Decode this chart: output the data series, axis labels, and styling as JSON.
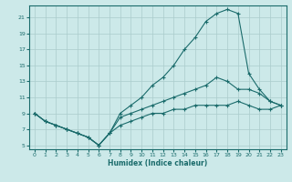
{
  "xlabel": "Humidex (Indice chaleur)",
  "background_color": "#cce9e9",
  "grid_color": "#aacccc",
  "line_color": "#1a6b6b",
  "xlim": [
    -0.5,
    23.5
  ],
  "ylim": [
    4.5,
    22.5
  ],
  "xticks": [
    0,
    1,
    2,
    3,
    4,
    5,
    6,
    7,
    8,
    9,
    10,
    11,
    12,
    13,
    14,
    15,
    16,
    17,
    18,
    19,
    20,
    21,
    22,
    23
  ],
  "yticks": [
    5,
    7,
    9,
    11,
    13,
    15,
    17,
    19,
    21
  ],
  "series": [
    {
      "x": [
        0,
        1,
        2,
        3,
        4,
        5,
        6,
        7,
        8,
        9,
        10,
        11,
        12,
        13,
        14,
        15,
        16,
        17,
        18,
        19,
        20,
        21,
        22,
        23
      ],
      "y": [
        9,
        8,
        7.5,
        7,
        6.5,
        6,
        5,
        6.5,
        9,
        10,
        11,
        12.5,
        13.5,
        15,
        17,
        18.5,
        20.5,
        21.5,
        22,
        21.5,
        14,
        12,
        10.5,
        10
      ]
    },
    {
      "x": [
        0,
        1,
        2,
        3,
        4,
        5,
        6,
        7,
        8,
        9,
        10,
        11,
        12,
        13,
        14,
        15,
        16,
        17,
        18,
        19,
        20,
        21,
        22,
        23
      ],
      "y": [
        9,
        8,
        7.5,
        7,
        6.5,
        6,
        5,
        6.5,
        8.5,
        9,
        9.5,
        10,
        10.5,
        11,
        11.5,
        12,
        12.5,
        13.5,
        13,
        12,
        12,
        11.5,
        10.5,
        10
      ]
    },
    {
      "x": [
        0,
        1,
        2,
        3,
        4,
        5,
        6,
        7,
        8,
        9,
        10,
        11,
        12,
        13,
        14,
        15,
        16,
        17,
        18,
        19,
        20,
        21,
        22,
        23
      ],
      "y": [
        9,
        8,
        7.5,
        7,
        6.5,
        6,
        5,
        6.5,
        7.5,
        8,
        8.5,
        9,
        9,
        9.5,
        9.5,
        10,
        10,
        10,
        10,
        10.5,
        10,
        9.5,
        9.5,
        10
      ]
    }
  ]
}
